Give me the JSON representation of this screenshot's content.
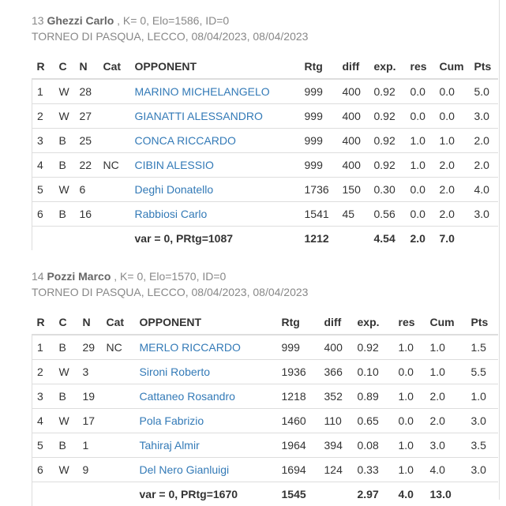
{
  "players": [
    {
      "number": "13",
      "name": "Ghezzi Carlo",
      "meta": ", K= 0, Elo=1586, ID=0",
      "tournament": "TORNEO DI PASQUA, LECCO, 08/04/2023, 08/04/2023",
      "columns": [
        "R",
        "C",
        "N",
        "Cat",
        "OPPONENT",
        "Rtg",
        "diff",
        "exp.",
        "res",
        "Cum",
        "Pts"
      ],
      "rows": [
        {
          "r": "1",
          "c": "W",
          "n": "28",
          "cat": "",
          "opponent": "MARINO MICHELANGELO",
          "rtg": "999",
          "diff": "400",
          "exp": "0.92",
          "res": "0.0",
          "cum": "0.0",
          "pts": "5.0"
        },
        {
          "r": "2",
          "c": "W",
          "n": "27",
          "cat": "",
          "opponent": "GIANATTI ALESSANDRO",
          "rtg": "999",
          "diff": "400",
          "exp": "0.92",
          "res": "0.0",
          "cum": "0.0",
          "pts": "3.0"
        },
        {
          "r": "3",
          "c": "B",
          "n": "25",
          "cat": "",
          "opponent": "CONCA RICCARDO",
          "rtg": "999",
          "diff": "400",
          "exp": "0.92",
          "res": "1.0",
          "cum": "1.0",
          "pts": "2.0"
        },
        {
          "r": "4",
          "c": "B",
          "n": "22",
          "cat": "NC",
          "opponent": "CIBIN ALESSIO",
          "rtg": "999",
          "diff": "400",
          "exp": "0.92",
          "res": "1.0",
          "cum": "2.0",
          "pts": "2.0"
        },
        {
          "r": "5",
          "c": "W",
          "n": "6",
          "cat": "",
          "opponent": "Deghi Donatello",
          "rtg": "1736",
          "diff": "150",
          "exp": "0.30",
          "res": "0.0",
          "cum": "2.0",
          "pts": "4.0"
        },
        {
          "r": "6",
          "c": "B",
          "n": "16",
          "cat": "",
          "opponent": "Rabbiosi Carlo",
          "rtg": "1541",
          "diff": "45",
          "exp": "0.56",
          "res": "0.0",
          "cum": "2.0",
          "pts": "3.0"
        }
      ],
      "summary": {
        "label": "var = 0, PRtg=1087",
        "rtg": "1212",
        "exp": "4.54",
        "res": "2.0",
        "cum": "7.0"
      }
    },
    {
      "number": "14",
      "name": "Pozzi Marco",
      "meta": ", K= 0, Elo=1570, ID=0",
      "tournament": "TORNEO DI PASQUA, LECCO, 08/04/2023, 08/04/2023",
      "columns": [
        "R",
        "C",
        "N",
        "Cat",
        "OPPONENT",
        "Rtg",
        "diff",
        "exp.",
        "res",
        "Cum",
        "Pts"
      ],
      "rows": [
        {
          "r": "1",
          "c": "B",
          "n": "29",
          "cat": "NC",
          "opponent": "MERLO RICCARDO",
          "rtg": "999",
          "diff": "400",
          "exp": "0.92",
          "res": "1.0",
          "cum": "1.0",
          "pts": "1.5"
        },
        {
          "r": "2",
          "c": "W",
          "n": "3",
          "cat": "",
          "opponent": "Sironi Roberto",
          "rtg": "1936",
          "diff": "366",
          "exp": "0.10",
          "res": "0.0",
          "cum": "1.0",
          "pts": "5.5"
        },
        {
          "r": "3",
          "c": "B",
          "n": "19",
          "cat": "",
          "opponent": "Cattaneo Rosandro",
          "rtg": "1218",
          "diff": "352",
          "exp": "0.89",
          "res": "1.0",
          "cum": "2.0",
          "pts": "1.0"
        },
        {
          "r": "4",
          "c": "W",
          "n": "17",
          "cat": "",
          "opponent": "Pola Fabrizio",
          "rtg": "1460",
          "diff": "110",
          "exp": "0.65",
          "res": "0.0",
          "cum": "2.0",
          "pts": "3.0"
        },
        {
          "r": "5",
          "c": "B",
          "n": "1",
          "cat": "",
          "opponent": "Tahiraj Almir",
          "rtg": "1964",
          "diff": "394",
          "exp": "0.08",
          "res": "1.0",
          "cum": "3.0",
          "pts": "3.5"
        },
        {
          "r": "6",
          "c": "W",
          "n": "9",
          "cat": "",
          "opponent": "Del Nero Gianluigi",
          "rtg": "1694",
          "diff": "124",
          "exp": "0.33",
          "res": "1.0",
          "cum": "4.0",
          "pts": "3.0"
        }
      ],
      "summary": {
        "label": "var = 0, PRtg=1670",
        "rtg": "1545",
        "exp": "2.97",
        "res": "4.0",
        "cum": "13.0"
      }
    }
  ]
}
